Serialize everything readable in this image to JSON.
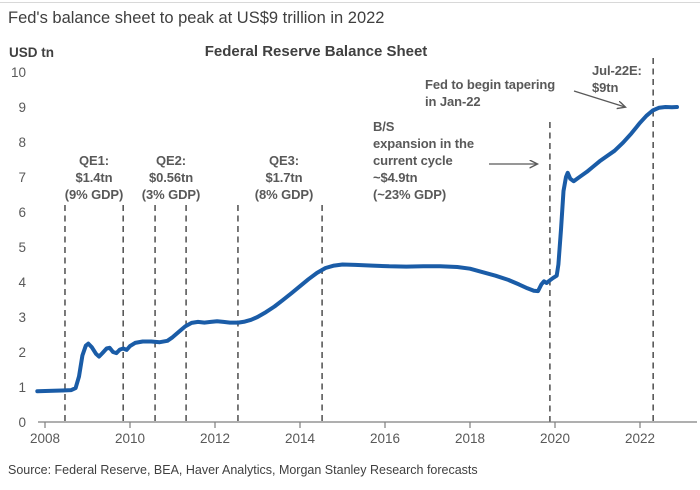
{
  "page": {
    "title": "Fed's balance sheet to peak at US$9 trillion in 2022",
    "source": "Source: Federal Reserve, BEA, Haver Analytics, Morgan Stanley Research forecasts"
  },
  "chart_data": {
    "type": "line",
    "title": "Federal Reserve Balance Sheet",
    "y_axis_unit_label": "USD tn",
    "ylabel": "USD tn",
    "xlabel": "",
    "ylim": [
      0,
      10
    ],
    "y_ticks": [
      0,
      1,
      2,
      3,
      4,
      5,
      6,
      7,
      8,
      9,
      10
    ],
    "x_ticks": [
      2008,
      2010,
      2012,
      2014,
      2016,
      2018,
      2020,
      2022
    ],
    "x_range": [
      2008,
      2022.9
    ],
    "grid": false,
    "legend": "none",
    "series": [
      {
        "name": "Federal Reserve balance sheet (USD tn)",
        "points": [
          [
            2007.82,
            0.88
          ],
          [
            2008.1,
            0.89
          ],
          [
            2008.4,
            0.9
          ],
          [
            2008.62,
            0.91
          ],
          [
            2008.72,
            0.97
          ],
          [
            2008.8,
            1.3
          ],
          [
            2008.88,
            1.9
          ],
          [
            2008.96,
            2.18
          ],
          [
            2009.02,
            2.24
          ],
          [
            2009.1,
            2.14
          ],
          [
            2009.2,
            1.95
          ],
          [
            2009.27,
            1.87
          ],
          [
            2009.35,
            1.97
          ],
          [
            2009.45,
            2.1
          ],
          [
            2009.52,
            2.12
          ],
          [
            2009.6,
            2.0
          ],
          [
            2009.68,
            1.97
          ],
          [
            2009.76,
            2.07
          ],
          [
            2009.84,
            2.1
          ],
          [
            2009.92,
            2.06
          ],
          [
            2010.0,
            2.17
          ],
          [
            2010.12,
            2.26
          ],
          [
            2010.3,
            2.3
          ],
          [
            2010.5,
            2.3
          ],
          [
            2010.7,
            2.28
          ],
          [
            2010.88,
            2.32
          ],
          [
            2011.0,
            2.42
          ],
          [
            2011.15,
            2.58
          ],
          [
            2011.3,
            2.73
          ],
          [
            2011.45,
            2.83
          ],
          [
            2011.6,
            2.86
          ],
          [
            2011.75,
            2.84
          ],
          [
            2011.9,
            2.86
          ],
          [
            2012.05,
            2.88
          ],
          [
            2012.2,
            2.86
          ],
          [
            2012.35,
            2.84
          ],
          [
            2012.55,
            2.84
          ],
          [
            2012.7,
            2.87
          ],
          [
            2012.85,
            2.92
          ],
          [
            2013.0,
            3.0
          ],
          [
            2013.2,
            3.14
          ],
          [
            2013.4,
            3.3
          ],
          [
            2013.6,
            3.49
          ],
          [
            2013.8,
            3.68
          ],
          [
            2014.0,
            3.88
          ],
          [
            2014.2,
            4.08
          ],
          [
            2014.4,
            4.26
          ],
          [
            2014.6,
            4.4
          ],
          [
            2014.8,
            4.47
          ],
          [
            2015.0,
            4.5
          ],
          [
            2015.3,
            4.49
          ],
          [
            2015.7,
            4.47
          ],
          [
            2016.1,
            4.45
          ],
          [
            2016.5,
            4.44
          ],
          [
            2016.9,
            4.45
          ],
          [
            2017.3,
            4.45
          ],
          [
            2017.7,
            4.43
          ],
          [
            2018.0,
            4.38
          ],
          [
            2018.3,
            4.28
          ],
          [
            2018.6,
            4.18
          ],
          [
            2018.9,
            4.06
          ],
          [
            2019.15,
            3.93
          ],
          [
            2019.35,
            3.82
          ],
          [
            2019.5,
            3.75
          ],
          [
            2019.6,
            3.74
          ],
          [
            2019.68,
            3.93
          ],
          [
            2019.74,
            4.02
          ],
          [
            2019.8,
            3.97
          ],
          [
            2019.88,
            4.05
          ],
          [
            2019.96,
            4.12
          ],
          [
            2020.04,
            4.18
          ],
          [
            2020.08,
            4.5
          ],
          [
            2020.14,
            5.5
          ],
          [
            2020.2,
            6.6
          ],
          [
            2020.26,
            7.0
          ],
          [
            2020.3,
            7.12
          ],
          [
            2020.36,
            6.95
          ],
          [
            2020.44,
            6.88
          ],
          [
            2020.52,
            6.95
          ],
          [
            2020.6,
            7.02
          ],
          [
            2020.75,
            7.15
          ],
          [
            2020.9,
            7.3
          ],
          [
            2021.05,
            7.45
          ],
          [
            2021.2,
            7.58
          ],
          [
            2021.4,
            7.75
          ],
          [
            2021.6,
            7.98
          ],
          [
            2021.8,
            8.25
          ],
          [
            2022.0,
            8.55
          ],
          [
            2022.15,
            8.75
          ],
          [
            2022.3,
            8.9
          ],
          [
            2022.45,
            8.98
          ],
          [
            2022.6,
            9.0
          ],
          [
            2022.75,
            8.99
          ],
          [
            2022.87,
            9.0
          ]
        ]
      }
    ],
    "dashed_markers": [
      {
        "name": "qe1-start",
        "year": 2008.47,
        "top_value": 6.2
      },
      {
        "name": "qe1-end",
        "year": 2009.84,
        "top_value": 6.2
      },
      {
        "name": "qe2-start",
        "year": 2010.59,
        "top_value": 6.2
      },
      {
        "name": "qe2-end",
        "year": 2011.32,
        "top_value": 6.2
      },
      {
        "name": "qe3-start",
        "year": 2012.54,
        "top_value": 6.2
      },
      {
        "name": "qe3-end",
        "year": 2014.52,
        "top_value": 6.2
      },
      {
        "name": "current-cycle-start",
        "year": 2019.88,
        "top_value": 8.57
      },
      {
        "name": "jul-22-forecast",
        "year": 2022.31,
        "top_value": 10.4
      }
    ],
    "annotations": {
      "qe1": {
        "lines": [
          "QE1:",
          "$1.4tn",
          "(9% GDP)"
        ]
      },
      "qe2": {
        "lines": [
          "QE2:",
          "$0.56tn",
          "(3% GDP)"
        ]
      },
      "qe3": {
        "lines": [
          "QE3:",
          "$1.7tn",
          "(8% GDP)"
        ]
      },
      "bs_expansion": {
        "lines": [
          "B/S",
          "expansion in the",
          "current cycle",
          "~$4.9tn",
          "(~23% GDP)"
        ]
      },
      "tapering": {
        "lines": [
          "Fed to begin tapering",
          "in Jan-22"
        ]
      },
      "jul22": {
        "lines": [
          "Jul-22E:",
          "$9tn"
        ]
      }
    },
    "colors": {
      "line": "#1A5CA7",
      "annotation": "#595959",
      "axis": "#7f7f7f",
      "tick_label": "#595959",
      "dashed": "#595959"
    }
  }
}
